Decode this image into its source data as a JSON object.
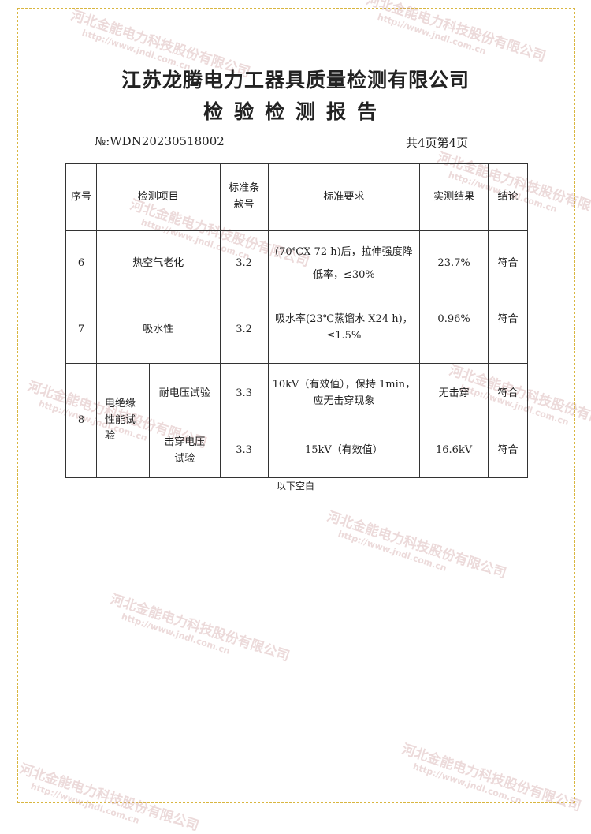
{
  "title": "江苏龙腾电力工器具质量检测有限公司",
  "subtitle": "检验检测报告",
  "report_no": "№:WDN20230518002",
  "page_info": "共4页第4页",
  "headers": {
    "no": "序号",
    "item": "检测项目",
    "clause": "标准条款号",
    "req": "标准要求",
    "result": "实测结果",
    "conclusion": "结论"
  },
  "rows": [
    {
      "no": "6",
      "item": "热空气老化",
      "clause": "3.2",
      "req": "(70℃X 72 h)后，拉伸强度降低率，≤30%",
      "result": "23.7%",
      "conclusion": "符合"
    },
    {
      "no": "7",
      "item": "吸水性",
      "clause": "3.2",
      "req": "吸水率(23℃蒸馏水 X24 h)，≤1.5%",
      "result": "0.96%",
      "conclusion": "符合"
    },
    {
      "no": "8",
      "item": "电绝缘性能试验",
      "sub": [
        {
          "item": "耐电压试验",
          "clause": "3.3",
          "req": "10kV（有效值），保持 1min，应无击穿现象",
          "result": "无击穿",
          "conclusion": "符合"
        },
        {
          "item": "击穿电压试验",
          "clause": "3.3",
          "req": "15kV（有效值）",
          "result": "16.6kV",
          "conclusion": "符合"
        }
      ]
    }
  ],
  "footer_note": "以下空白",
  "watermark": {
    "company": "河北金能电力科技股份有限公司",
    "url": "http://www.jndl.com.cn"
  }
}
